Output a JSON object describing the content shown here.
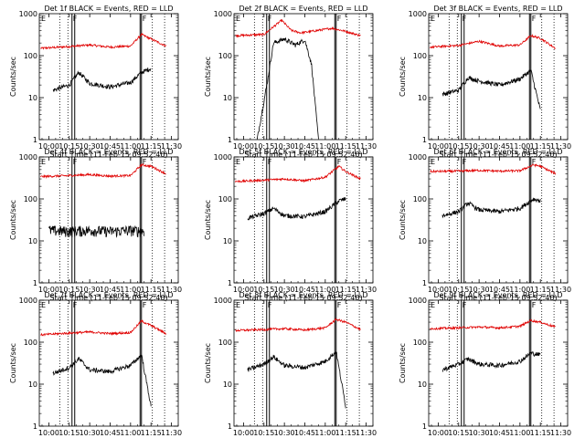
{
  "colors": {
    "events": "#000000",
    "lld": "#e00000",
    "axis": "#000000"
  },
  "chart_data": {
    "type": "line",
    "layout": "3x3 grid",
    "y_scale": "log",
    "ylim": [
      1,
      1000
    ],
    "xlim": [
      "09:53",
      "11:35"
    ],
    "y_tick_labels": [
      "1",
      "10",
      "100",
      "1000"
    ],
    "x_tick_labels": [
      "10:00",
      "10:15",
      "10:30",
      "10:45",
      "11:00",
      "11:15",
      "11:30"
    ],
    "ylabel": "Counts/sec",
    "xlabel": "Start Time (11-Feb-15 09:52:40)",
    "markers": {
      "solid_pairs": [
        [
          "10:17",
          "10:19"
        ],
        [
          "11:07",
          "11:08"
        ]
      ],
      "dotted": [
        "10:08",
        "10:14",
        "11:16",
        "11:25"
      ],
      "flag_labels": [
        "E",
        "F",
        "F"
      ]
    },
    "panels": [
      {
        "title": "Det 1f BLACK = Events, RED = LLD",
        "lld": {
          "times": [
            "09:54",
            "10:15",
            "10:30",
            "10:45",
            "11:00",
            "11:08",
            "11:15",
            "11:26"
          ],
          "values": [
            150,
            165,
            180,
            160,
            170,
            320,
            250,
            170
          ]
        },
        "events": {
          "times": [
            "10:03",
            "10:15",
            "10:22",
            "10:30",
            "10:45",
            "11:00",
            "11:08",
            "11:15"
          ],
          "values": [
            15,
            20,
            40,
            22,
            18,
            23,
            40,
            50
          ]
        }
      },
      {
        "title": "Det 2f BLACK = Events, RED = LLD",
        "lld": {
          "times": [
            "09:54",
            "10:15",
            "10:28",
            "10:35",
            "10:42",
            "10:50",
            "11:05",
            "11:15",
            "11:26"
          ],
          "values": [
            300,
            320,
            700,
            400,
            350,
            380,
            450,
            380,
            300
          ]
        },
        "events": {
          "times": [
            "10:10",
            "10:18",
            "10:22",
            "10:30",
            "10:38",
            "10:45",
            "10:50",
            "10:55"
          ],
          "values": [
            1,
            30,
            200,
            250,
            180,
            240,
            60,
            1
          ]
        }
      },
      {
        "title": "Det 3f BLACK = Events, RED = LLD",
        "lld": {
          "times": [
            "09:54",
            "10:15",
            "10:30",
            "10:45",
            "11:00",
            "11:08",
            "11:15",
            "11:26"
          ],
          "values": [
            160,
            175,
            220,
            170,
            180,
            300,
            260,
            150
          ]
        },
        "events": {
          "times": [
            "10:03",
            "10:15",
            "10:22",
            "10:30",
            "10:45",
            "11:00",
            "11:08",
            "11:15"
          ],
          "values": [
            12,
            15,
            30,
            25,
            20,
            28,
            45,
            5
          ]
        }
      },
      {
        "title": "Det 4f BLACK = Events, RED = LLD",
        "lld": {
          "times": [
            "09:54",
            "10:15",
            "10:30",
            "10:45",
            "11:00",
            "11:08",
            "11:15",
            "11:26"
          ],
          "values": [
            340,
            360,
            380,
            350,
            360,
            650,
            600,
            400
          ]
        },
        "events": {
          "times": [
            "10:00",
            "10:15",
            "10:30",
            "10:45",
            "11:00",
            "11:10"
          ],
          "values": [
            18,
            17,
            18,
            17,
            18,
            17
          ]
        }
      },
      {
        "title": "Det 5f BLACK = Events, RED = LLD",
        "lld": {
          "times": [
            "09:54",
            "10:15",
            "10:30",
            "10:45",
            "11:00",
            "11:10",
            "11:15",
            "11:26"
          ],
          "values": [
            260,
            280,
            300,
            270,
            330,
            600,
            450,
            300
          ]
        },
        "events": {
          "times": [
            "10:03",
            "10:15",
            "10:22",
            "10:30",
            "10:45",
            "11:00",
            "11:10",
            "11:15"
          ],
          "values": [
            35,
            45,
            60,
            40,
            38,
            50,
            90,
            100
          ]
        }
      },
      {
        "title": "Det 6f BLACK = Events, RED = LLD",
        "lld": {
          "times": [
            "09:54",
            "10:15",
            "10:30",
            "10:45",
            "11:00",
            "11:10",
            "11:15",
            "11:26"
          ],
          "values": [
            450,
            460,
            480,
            460,
            470,
            650,
            600,
            400
          ]
        },
        "events": {
          "times": [
            "10:03",
            "10:15",
            "10:22",
            "10:30",
            "10:45",
            "11:00",
            "11:10",
            "11:15"
          ],
          "values": [
            40,
            50,
            80,
            55,
            50,
            60,
            100,
            90
          ]
        }
      },
      {
        "title": "Det 7f BLACK = Events, RED = LLD",
        "lld": {
          "times": [
            "09:54",
            "10:15",
            "10:30",
            "10:45",
            "11:00",
            "11:08",
            "11:15",
            "11:26"
          ],
          "values": [
            150,
            165,
            175,
            160,
            170,
            320,
            250,
            160
          ]
        },
        "events": {
          "times": [
            "10:03",
            "10:15",
            "10:22",
            "10:30",
            "10:45",
            "11:00",
            "11:08",
            "11:15"
          ],
          "values": [
            18,
            25,
            40,
            22,
            20,
            28,
            50,
            3
          ]
        }
      },
      {
        "title": "Det 8f BLACK = Events, RED = LLD",
        "lld": {
          "times": [
            "09:54",
            "10:15",
            "10:30",
            "10:45",
            "11:00",
            "11:08",
            "11:15",
            "11:26"
          ],
          "values": [
            190,
            200,
            210,
            195,
            220,
            350,
            300,
            200
          ]
        },
        "events": {
          "times": [
            "10:03",
            "10:15",
            "10:22",
            "10:30",
            "10:45",
            "11:00",
            "11:08",
            "11:15"
          ],
          "values": [
            22,
            30,
            45,
            28,
            25,
            35,
            60,
            3
          ]
        }
      },
      {
        "title": "Det 9f BLACK = Events, RED = LLD",
        "lld": {
          "times": [
            "09:54",
            "10:15",
            "10:30",
            "10:45",
            "11:00",
            "11:08",
            "11:15",
            "11:26"
          ],
          "values": [
            210,
            220,
            230,
            220,
            240,
            330,
            300,
            230
          ]
        },
        "events": {
          "times": [
            "10:03",
            "10:15",
            "10:22",
            "10:30",
            "10:45",
            "11:00",
            "11:08",
            "11:15"
          ],
          "values": [
            22,
            30,
            40,
            30,
            28,
            35,
            55,
            50
          ]
        }
      }
    ]
  }
}
